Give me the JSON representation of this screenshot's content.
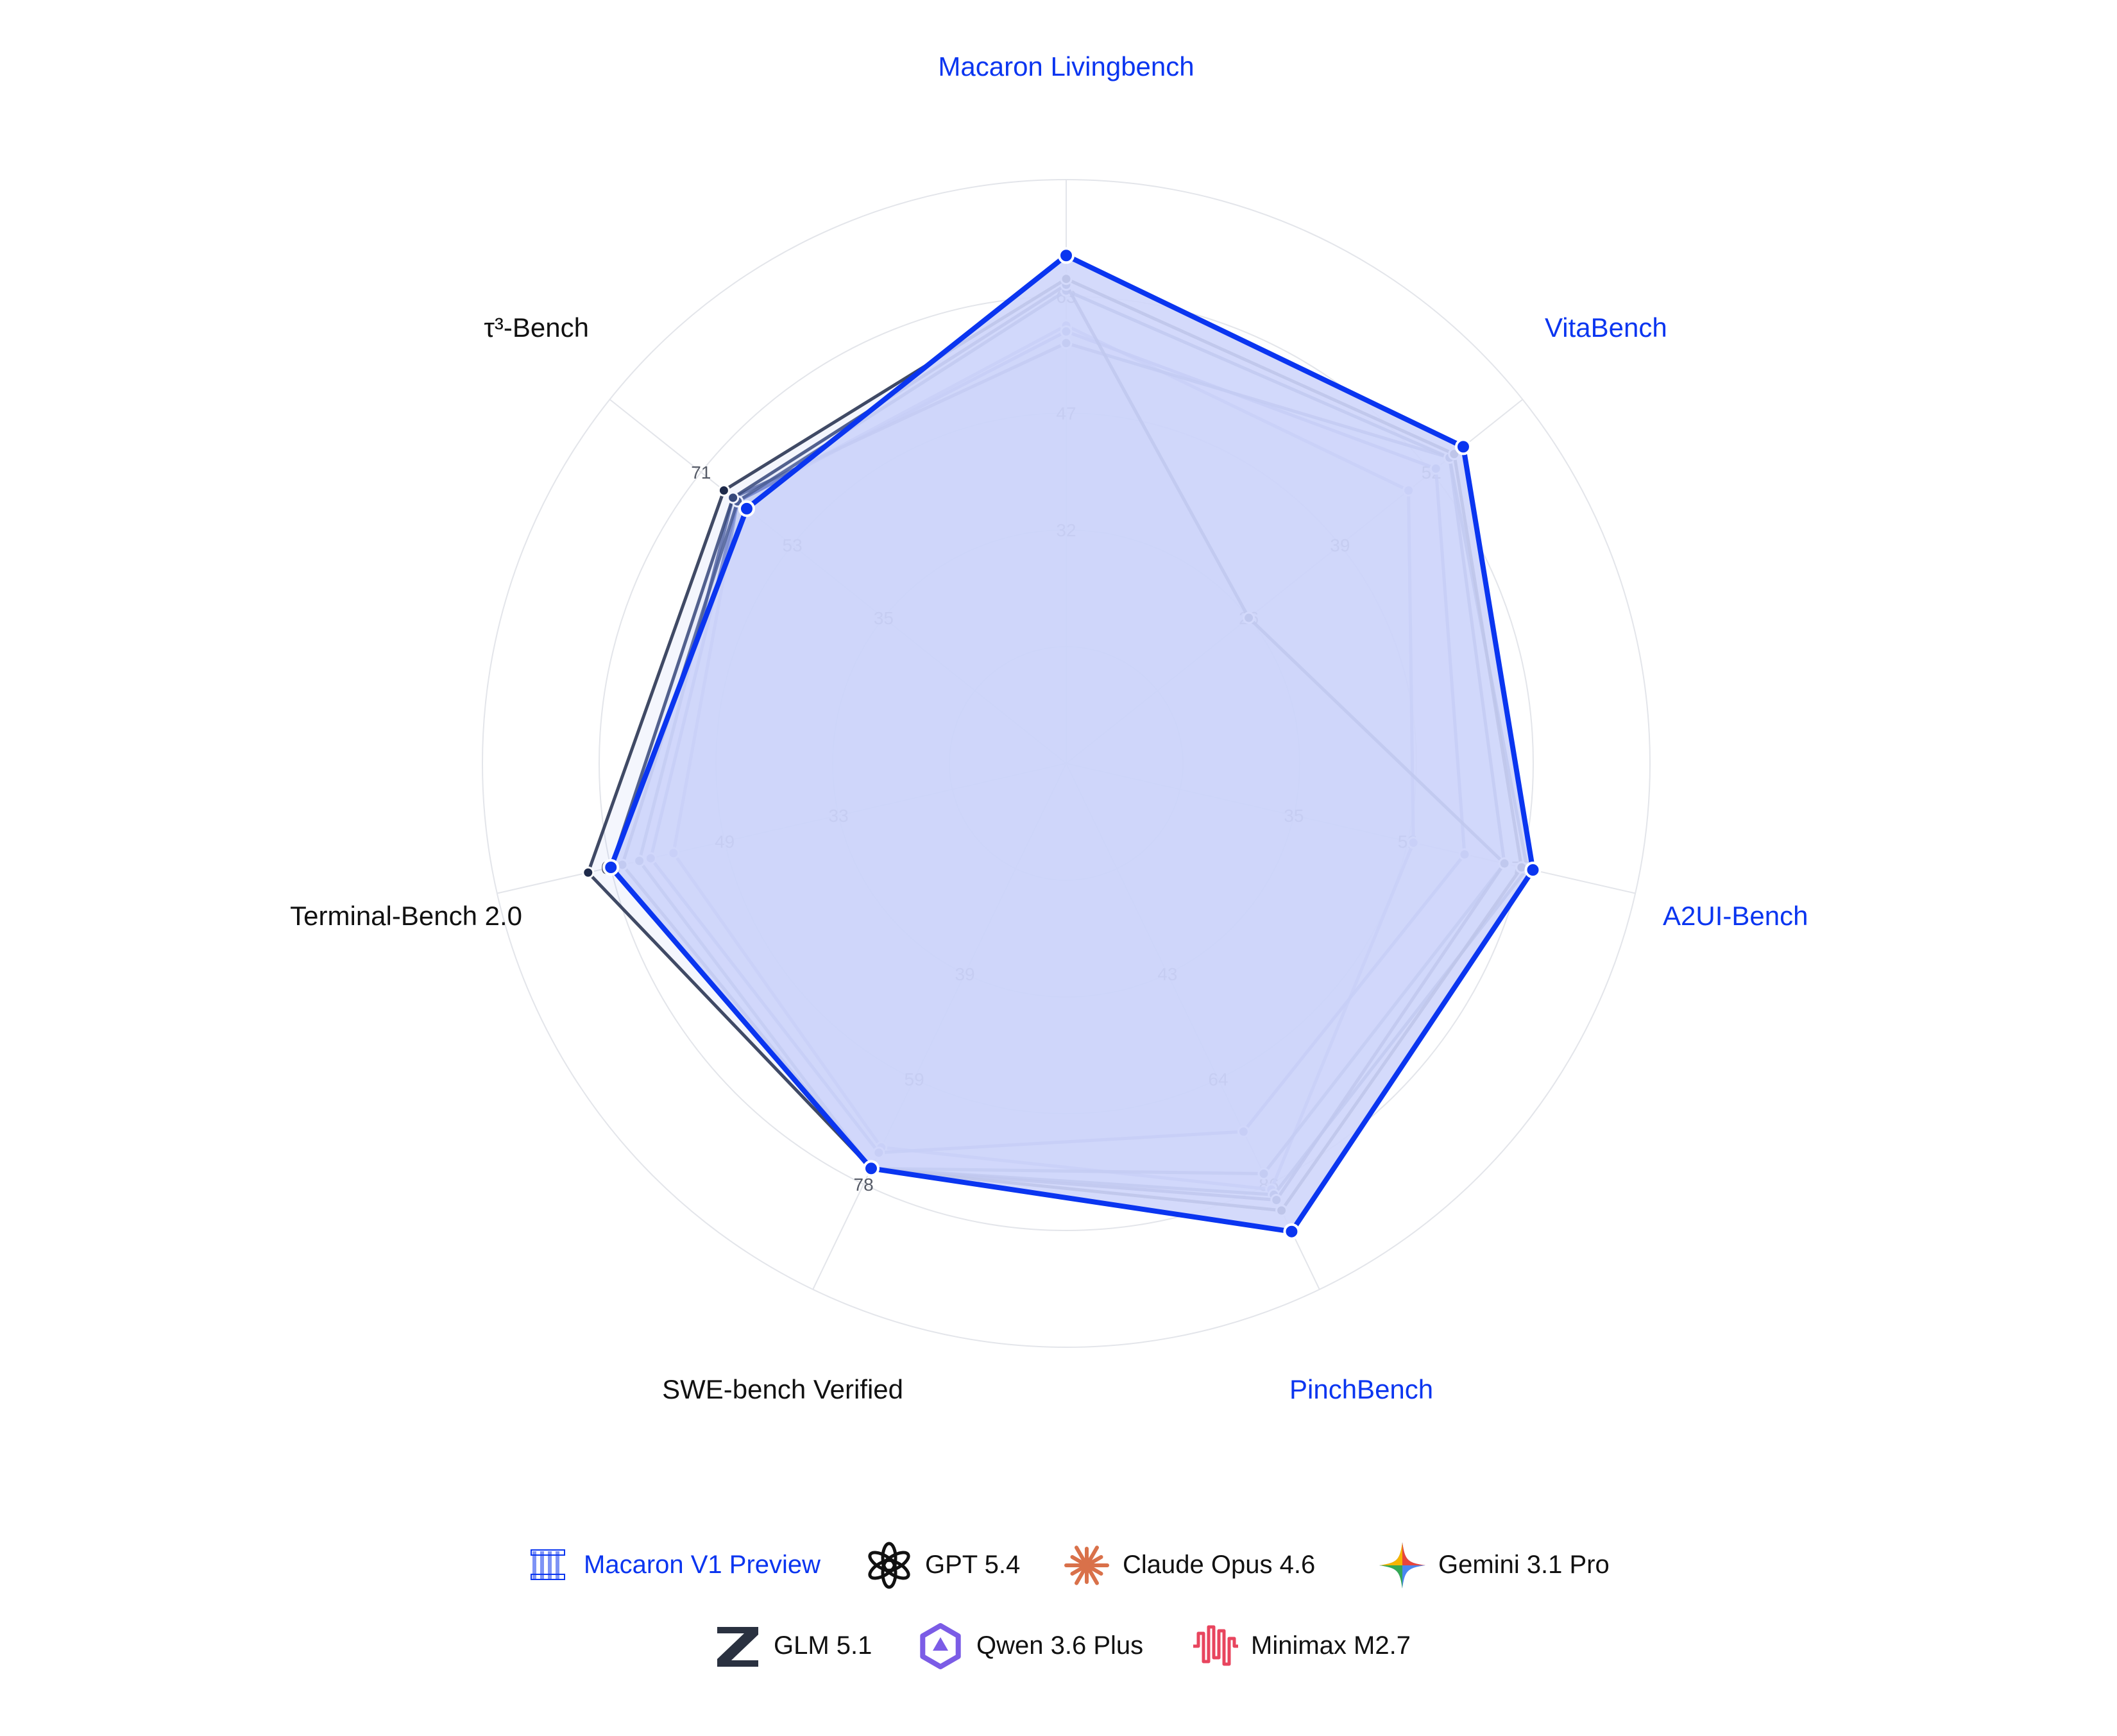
{
  "chart_data": {
    "type": "radar",
    "axes": [
      {
        "label": "Macaron Livingbench",
        "highlight": true,
        "ticks": [
          "32",
          "47",
          "63"
        ]
      },
      {
        "label": "VitaBench",
        "highlight": true,
        "ticks": [
          "26",
          "39",
          "52"
        ]
      },
      {
        "label": "A2UI-Bench",
        "highlight": true,
        "ticks": [
          "35",
          "52",
          "70"
        ]
      },
      {
        "label": "PinchBench",
        "highlight": true,
        "ticks": [
          "43",
          "64",
          "86"
        ]
      },
      {
        "label": "SWE-bench Verified",
        "highlight": false,
        "ticks": [
          "39",
          "59",
          "78"
        ]
      },
      {
        "label": "Terminal-Bench 2.0",
        "highlight": false,
        "ticks": [
          "33",
          "49",
          "65"
        ]
      },
      {
        "label": "τ³-Bench",
        "highlight": false,
        "ticks": [
          "35",
          "53",
          "71"
        ]
      }
    ],
    "ring_count": 5,
    "series": [
      {
        "name": "Macaron V1 Preview",
        "icon": "macaron-logo-icon",
        "color": "#0a35f0",
        "values": [
          0.87,
          0.87,
          0.82,
          0.89,
          0.77,
          0.8,
          0.7
        ],
        "primary": true
      },
      {
        "name": "GPT 5.4",
        "icon": "openai-logo-icon",
        "color": "#1e2a4a",
        "values": [
          0.83,
          0.85,
          0.8,
          0.85,
          0.77,
          0.84,
          0.75
        ],
        "primary": false
      },
      {
        "name": "Claude Opus 4.6",
        "icon": "claude-logo-icon",
        "color": "#2b3d6e",
        "values": [
          0.82,
          0.4,
          0.77,
          0.83,
          0.77,
          0.8,
          0.73
        ],
        "primary": false
      },
      {
        "name": "Gemini 3.1 Pro",
        "icon": "gemini-logo-icon",
        "color": "#3b4d85",
        "values": [
          0.81,
          0.84,
          0.81,
          0.82,
          0.77,
          0.78,
          0.72
        ],
        "primary": false
      },
      {
        "name": "GLM 5.1",
        "icon": "glm-logo-icon",
        "color": "#4a5c99",
        "values": [
          0.72,
          0.84,
          0.77,
          0.78,
          0.77,
          0.75,
          0.73
        ],
        "primary": false
      },
      {
        "name": "Qwen 3.6 Plus",
        "icon": "qwen-logo-icon",
        "color": "#6a78c0",
        "values": [
          0.74,
          0.81,
          0.7,
          0.7,
          0.74,
          0.73,
          0.72
        ],
        "primary": false
      },
      {
        "name": "Minimax M2.7",
        "icon": "minimax-logo-icon",
        "color": "#8a96d6",
        "values": [
          0.75,
          0.75,
          0.61,
          0.81,
          0.73,
          0.69,
          0.72
        ],
        "primary": false
      }
    ],
    "legend": {
      "placement": "bottom",
      "rows": [
        [
          0,
          1,
          2,
          3
        ],
        [
          4,
          5,
          6
        ]
      ]
    },
    "fill_color": "#cfd6fb"
  }
}
